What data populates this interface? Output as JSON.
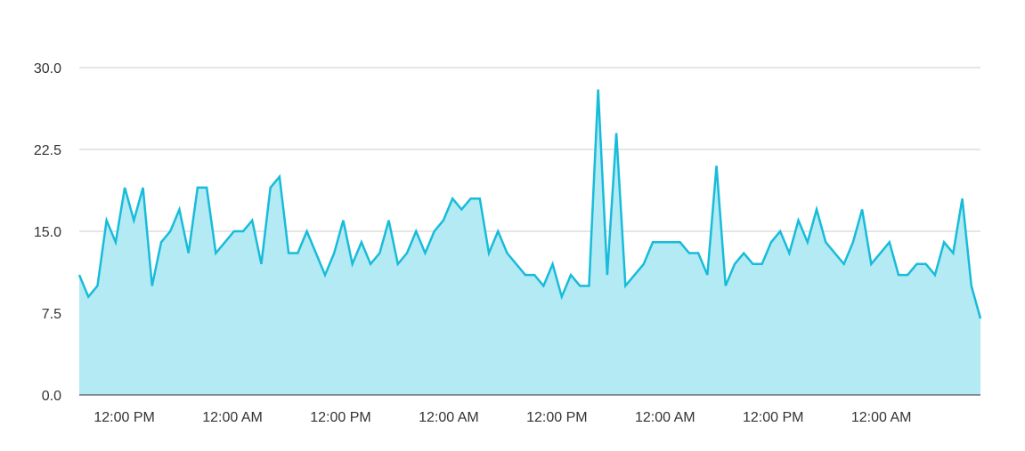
{
  "colors": {
    "line": "#17bcda",
    "area": "#b3eaf4",
    "grid": "#cccccc",
    "axis": "#333333",
    "text": "#333333"
  },
  "chart_data": {
    "type": "area",
    "title": "",
    "xlabel": "",
    "ylabel": "",
    "ylim": [
      0,
      30
    ],
    "xlim": [
      0,
      100
    ],
    "grid": true,
    "legend": "none",
    "y_ticks": [
      {
        "value": 0,
        "label": "0.0"
      },
      {
        "value": 7.5,
        "label": "7.5"
      },
      {
        "value": 15,
        "label": "15.0"
      },
      {
        "value": 22.5,
        "label": "22.5"
      },
      {
        "value": 30,
        "label": "30.0"
      }
    ],
    "x_ticks": [
      {
        "x": 5,
        "label": "12:00 PM"
      },
      {
        "x": 17,
        "label": "12:00 AM"
      },
      {
        "x": 29,
        "label": "12:00 PM"
      },
      {
        "x": 41,
        "label": "12:00 AM"
      },
      {
        "x": 53,
        "label": "12:00 PM"
      },
      {
        "x": 65,
        "label": "12:00 AM"
      },
      {
        "x": 77,
        "label": "12:00 PM"
      },
      {
        "x": 89,
        "label": "12:00 AM"
      }
    ],
    "series": [
      {
        "values": [
          11,
          9,
          10,
          16,
          14,
          19,
          16,
          19,
          10,
          14,
          15,
          17,
          13,
          19,
          19,
          13,
          14,
          15,
          15,
          16,
          12,
          19,
          20,
          13,
          13,
          15,
          13,
          11,
          13,
          16,
          12,
          14,
          12,
          13,
          16,
          12,
          13,
          15,
          13,
          15,
          16,
          18,
          17,
          18,
          18,
          13,
          15,
          13,
          12,
          11,
          11,
          10,
          12,
          9,
          11,
          10,
          10,
          28,
          11,
          24,
          10,
          11,
          12,
          14,
          14,
          14,
          14,
          13,
          13,
          11,
          21,
          10,
          12,
          13,
          12,
          12,
          14,
          15,
          13,
          16,
          14,
          17,
          14,
          13,
          12,
          14,
          17,
          12,
          13,
          14,
          11,
          11,
          12,
          12,
          11,
          14,
          13,
          18,
          10,
          7
        ]
      }
    ]
  }
}
